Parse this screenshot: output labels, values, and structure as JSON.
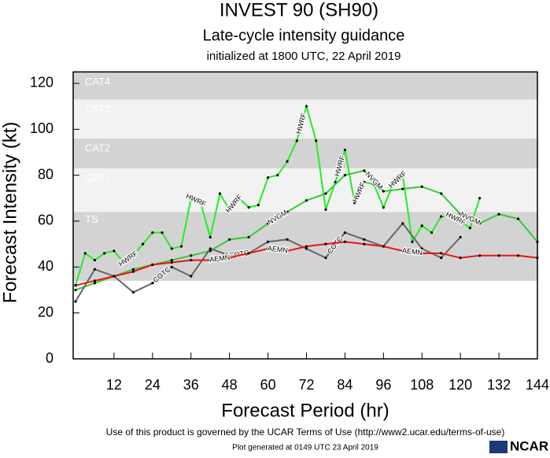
{
  "chart_data": {
    "type": "line",
    "title": "INVEST 90 (SH90)",
    "subtitle": "Late-cycle intensity guidance",
    "initialized": "initialized at 1800 UTC, 22 April 2019",
    "x_label": "Forecast Period (hr)",
    "y_label": "Forecast Intensity (kt)",
    "xlim": [
      0,
      144
    ],
    "ylim": [
      0,
      125
    ],
    "xticks": [
      12,
      24,
      36,
      48,
      60,
      72,
      84,
      96,
      108,
      120,
      132,
      144
    ],
    "yticks": [
      0,
      20,
      40,
      60,
      80,
      100,
      120
    ],
    "bands": [
      {
        "label": "TS",
        "from": 34,
        "to": 64,
        "color": "#d3d3d3"
      },
      {
        "label": "CAT1",
        "from": 64,
        "to": 83,
        "color": "#f2f2f2"
      },
      {
        "label": "CAT2",
        "from": 83,
        "to": 96,
        "color": "#d3d3d3"
      },
      {
        "label": "CAT3",
        "from": 96,
        "to": 113,
        "color": "#f2f2f2"
      },
      {
        "label": "CAT4",
        "from": 113,
        "to": 125,
        "color": "#d3d3d3"
      }
    ],
    "series": [
      {
        "name": "HWRF",
        "color": "#22ee22",
        "x": [
          0,
          3,
          6,
          9,
          12,
          15,
          18,
          21,
          24,
          27,
          30,
          33,
          36,
          39,
          42,
          45,
          48,
          51,
          54,
          57,
          60,
          63,
          66,
          69,
          72,
          75,
          78,
          81,
          84,
          87,
          90,
          93,
          96,
          99,
          102,
          105,
          108,
          111,
          114,
          117,
          120,
          123,
          126
        ],
        "values": [
          32,
          46,
          43,
          46,
          47,
          42,
          45,
          50,
          55,
          55,
          48,
          49,
          70,
          68,
          53,
          72,
          65,
          70,
          66,
          67,
          79,
          80,
          86,
          95,
          110,
          95,
          65,
          77,
          91,
          68,
          77,
          76,
          66,
          76,
          80,
          51,
          58,
          55,
          62,
          62,
          60,
          57,
          70
        ]
      },
      {
        "name": "NVGM",
        "color": "#33cc33",
        "x": [
          0,
          6,
          12,
          18,
          24,
          30,
          36,
          42,
          48,
          54,
          60,
          66,
          72,
          78,
          84,
          90,
          96,
          102,
          108,
          114,
          120,
          126,
          132,
          138,
          144
        ],
        "values": [
          30,
          33,
          36,
          39,
          41,
          43,
          45,
          47,
          52,
          53,
          59,
          64,
          69,
          72,
          80,
          82,
          73,
          74,
          75,
          72,
          63,
          59,
          63,
          61,
          51
        ]
      },
      {
        "name": "COTC",
        "color": "#666666",
        "x": [
          0,
          6,
          12,
          18,
          24,
          30,
          36,
          42,
          48,
          54,
          60,
          66,
          72,
          78,
          84,
          90,
          96,
          102,
          108,
          114,
          120
        ],
        "values": [
          25,
          39,
          36,
          29,
          33,
          40,
          36,
          48,
          45,
          46,
          51,
          52,
          48,
          44,
          55,
          52,
          49,
          59,
          48,
          44,
          53
        ]
      },
      {
        "name": "AEMN",
        "color": "#ee1111",
        "x": [
          0,
          6,
          12,
          18,
          24,
          30,
          36,
          42,
          48,
          54,
          60,
          66,
          72,
          78,
          84,
          90,
          96,
          102,
          108,
          114,
          120,
          126,
          132,
          138,
          144
        ],
        "values": [
          32,
          34,
          36,
          38,
          41,
          42,
          43,
          43,
          44,
          46,
          48,
          47,
          49,
          50,
          51,
          50,
          49,
          47,
          46,
          46,
          44,
          45,
          45,
          45,
          44
        ]
      }
    ],
    "footer": "Use of this product is governed by the UCAR Terms of Use (http://www2.ucar.edu/terms-of-use)",
    "generated": "Plot generated at 0149 UTC   23 April 2019",
    "logo": "NCAR"
  }
}
